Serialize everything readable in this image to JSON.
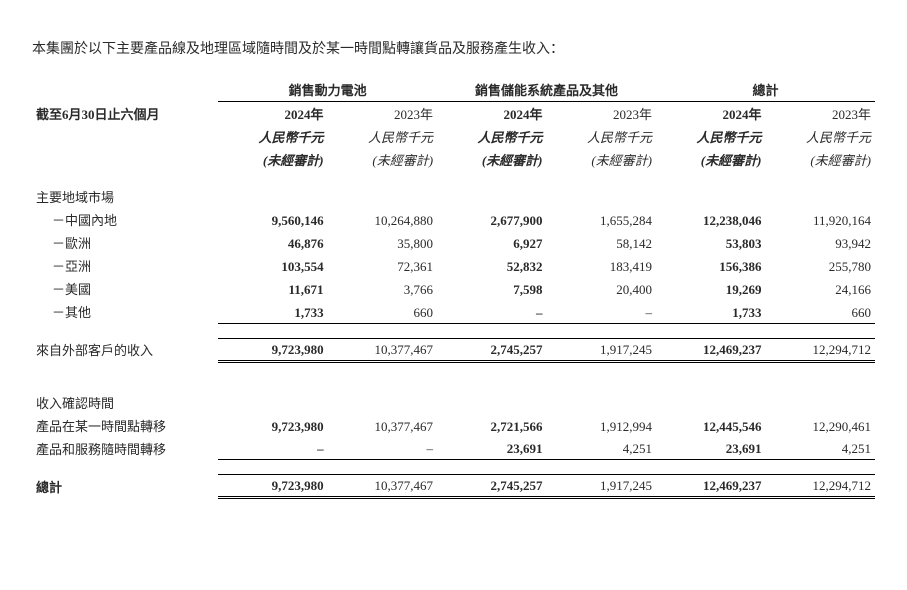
{
  "intro": "本集團於以下主要產品線及地理區域隨時間及於某一時間點轉讓貨品及服務產生收入：",
  "period_label": "截至6月30日止六個月",
  "column_groups": [
    {
      "title": "銷售動力電池"
    },
    {
      "title": "銷售儲能系統產品及其他"
    },
    {
      "title": "總計"
    }
  ],
  "years": {
    "y2024": "2024年",
    "y2023": "2023年"
  },
  "unit_bold": "人民幣千元",
  "unit_reg": "人民幣千元",
  "audit_bold": "(未經審計)",
  "audit_reg": "(未經審計)",
  "sections": {
    "geo_header": "主要地域市場",
    "geo_rows": [
      {
        "label": "－中國內地",
        "v": [
          "9,560,146",
          "10,264,880",
          "2,677,900",
          "1,655,284",
          "12,238,046",
          "11,920,164"
        ]
      },
      {
        "label": "－歐洲",
        "v": [
          "46,876",
          "35,800",
          "6,927",
          "58,142",
          "53,803",
          "93,942"
        ]
      },
      {
        "label": "－亞洲",
        "v": [
          "103,554",
          "72,361",
          "52,832",
          "183,419",
          "156,386",
          "255,780"
        ]
      },
      {
        "label": "－美國",
        "v": [
          "11,671",
          "3,766",
          "7,598",
          "20,400",
          "19,269",
          "24,166"
        ]
      },
      {
        "label": "－其他",
        "v": [
          "1,733",
          "660",
          "–",
          "–",
          "1,733",
          "660"
        ]
      }
    ],
    "external_rev_label": "來自外部客戶的收入",
    "external_rev": [
      "9,723,980",
      "10,377,467",
      "2,745,257",
      "1,917,245",
      "12,469,237",
      "12,294,712"
    ],
    "timing_header": "收入確認時間",
    "timing_rows": [
      {
        "label": "產品在某一時間點轉移",
        "v": [
          "9,723,980",
          "10,377,467",
          "2,721,566",
          "1,912,994",
          "12,445,546",
          "12,290,461"
        ]
      },
      {
        "label": "產品和服務隨時間轉移",
        "v": [
          "–",
          "–",
          "23,691",
          "4,251",
          "23,691",
          "4,251"
        ]
      }
    ],
    "total_label": "總計",
    "total": [
      "9,723,980",
      "10,377,467",
      "2,745,257",
      "1,917,245",
      "12,469,237",
      "12,294,712"
    ]
  }
}
